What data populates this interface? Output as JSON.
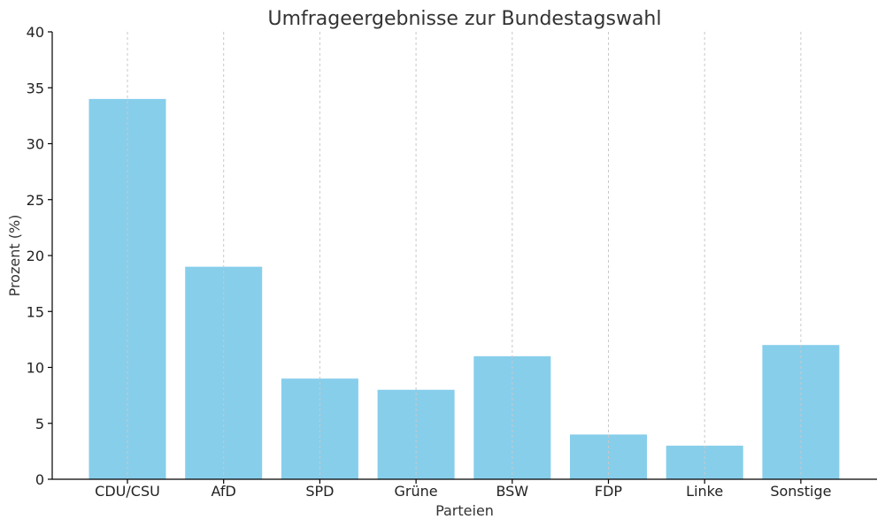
{
  "chart_data": {
    "type": "bar",
    "title": "Umfrageergebnisse zur Bundestagswahl",
    "xlabel": "Parteien",
    "ylabel": "Prozent (%)",
    "categories": [
      "CDU/CSU",
      "AfD",
      "SPD",
      "Grüne",
      "BSW",
      "FDP",
      "Linke",
      "Sonstige"
    ],
    "values": [
      34,
      19,
      9,
      8,
      11,
      4,
      3,
      12
    ],
    "ylim": [
      0,
      40
    ],
    "yticks": [
      0,
      5,
      10,
      15,
      20,
      25,
      30,
      35,
      40
    ],
    "grid": "x-dashed",
    "bar_color": "#87ceeb"
  }
}
